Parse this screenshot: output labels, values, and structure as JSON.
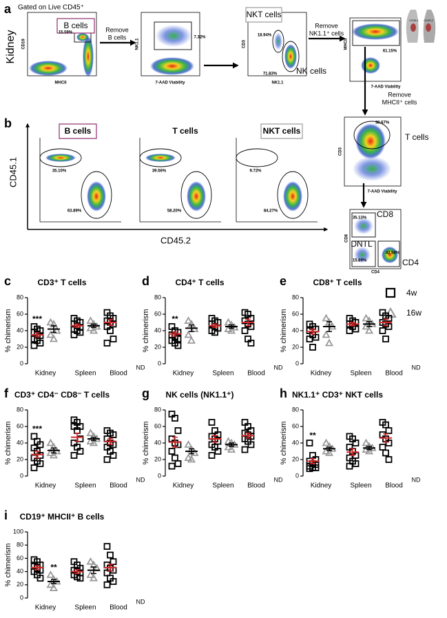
{
  "figure": {
    "a_label": "a",
    "b_label": "b",
    "tissue": "Kidney",
    "gate_note": "Gated on Live CD45⁺",
    "plot1": {
      "x": "MHCII",
      "y": "CD19",
      "gate": "B cells",
      "pct": "15.59%"
    },
    "step1": [
      "Remove",
      "B cells"
    ],
    "plot2": {
      "x": "7-AAD Viability",
      "y": "NK1.1",
      "pct": "7.32%"
    },
    "plot3": {
      "x": "NK1.1",
      "y": "CD3",
      "gate1": "NKT cells",
      "pct1": "18.94%",
      "gate2": "NK cells",
      "pct2": "71.83%"
    },
    "step2": [
      "Remove",
      "NK1.1⁺ cells"
    ],
    "plot4": {
      "x": "7-AAD Viability",
      "y": "MHCII",
      "pct": "61.15%"
    },
    "mouse": [
      "CD45.1",
      "CD45.2"
    ],
    "step3": [
      "Remove",
      "MHCII⁺ cells"
    ],
    "plot5": {
      "x": "7-AAD Viability",
      "y": "CD3",
      "gate": "T cells",
      "pct": "38.67%"
    },
    "plot6": {
      "x": "CD4",
      "y": "CD8",
      "gate1": "CD8",
      "pct1": "35.13%",
      "gate2": "DNTL",
      "pct2": "15.89%",
      "gate3": "CD4",
      "pct3": "42.58%"
    },
    "b": {
      "y": "CD45.1",
      "x": "CD45.2",
      "plots": [
        {
          "title": "B cells",
          "top": "35.10%",
          "bottom": "63.89%"
        },
        {
          "title": "T cells",
          "top": "39.56%",
          "bottom": "58.20%"
        },
        {
          "title": "NKT cells",
          "top": "9.72%",
          "bottom": "84.27%"
        }
      ]
    }
  },
  "chart_data": [
    {
      "type": "dot",
      "letter": "c",
      "title": "CD3⁺ T cells",
      "ylabel": "% chimerism",
      "categories": [
        "Kidney",
        "Spleen",
        "Blood"
      ],
      "ylim": [
        0,
        80
      ],
      "yticks": [
        0,
        20,
        40,
        60,
        80
      ],
      "series": [
        {
          "name": "4w",
          "color": "#000000",
          "mean_color": "#d62728",
          "values": [
            [
              45,
              42,
              40,
              38,
              36,
              34,
              30,
              28,
              25,
              22
            ],
            [
              55,
              52,
              50,
              48,
              46,
              44,
              42,
              40,
              38,
              35
            ],
            [
              62,
              58,
              55,
              52,
              50,
              48,
              45,
              40,
              30,
              25
            ]
          ],
          "means": [
            35,
            46,
            50
          ],
          "sems": [
            2.5,
            2,
            3.5
          ]
        },
        {
          "name": "16w",
          "color": "#999999",
          "mean_color": "#000000",
          "values": [
            [
              50,
              48,
              40,
              35,
              30
            ],
            [
              52,
              48,
              45,
              43,
              40
            ],
            null
          ],
          "means": [
            42,
            46,
            null
          ],
          "sems": [
            4,
            2,
            null
          ]
        }
      ],
      "annotations": [
        {
          "text": "***",
          "category": 0
        },
        {
          "text": "ND",
          "category": 2
        }
      ]
    },
    {
      "type": "dot",
      "letter": "d",
      "title": "CD4⁺ T cells",
      "ylabel": "% chimerism",
      "categories": [
        "Kidney",
        "Spleen",
        "Blood"
      ],
      "ylim": [
        0,
        80
      ],
      "yticks": [
        0,
        20,
        40,
        60,
        80
      ],
      "series": [
        {
          "name": "4w",
          "color": "#000000",
          "mean_color": "#d62728",
          "values": [
            [
              45,
              40,
              38,
              35,
              33,
              30,
              28,
              25,
              22
            ],
            [
              55,
              52,
              50,
              48,
              45,
              43,
              40,
              38
            ],
            [
              62,
              60,
              55,
              52,
              48,
              45,
              40,
              30,
              25
            ]
          ],
          "means": [
            36,
            46,
            50
          ],
          "sems": [
            2.5,
            2,
            4
          ]
        },
        {
          "name": "16w",
          "color": "#999999",
          "mean_color": "#000000",
          "values": [
            [
              52,
              48,
              42,
              35,
              28
            ],
            [
              50,
              47,
              44,
              42,
              40
            ],
            null
          ],
          "means": [
            43,
            45,
            null
          ],
          "sems": [
            4,
            2,
            null
          ]
        }
      ],
      "annotations": [
        {
          "text": "**",
          "category": 0
        },
        {
          "text": "ND",
          "category": 2
        }
      ]
    },
    {
      "type": "dot",
      "letter": "e",
      "title": "CD8⁺ T cells",
      "ylabel": "% chimerism",
      "categories": [
        "Kidney",
        "Spleen",
        "Blood"
      ],
      "ylim": [
        0,
        80
      ],
      "yticks": [
        0,
        20,
        40,
        60,
        80
      ],
      "series": [
        {
          "name": "4w",
          "color": "#000000",
          "mean_color": "#d62728",
          "values": [
            [
              48,
              45,
              42,
              40,
              35,
              32,
              30,
              20
            ],
            [
              55,
              52,
              50,
              48,
              45,
              42,
              40
            ],
            [
              62,
              58,
              55,
              50,
              48,
              45,
              40,
              30
            ]
          ],
          "means": [
            39,
            48,
            50
          ],
          "sems": [
            3,
            2,
            4
          ]
        },
        {
          "name": "16w",
          "color": "#999999",
          "mean_color": "#000000",
          "values": [
            [
              55,
              50,
              45,
              35,
              25
            ],
            [
              55,
              52,
              48,
              45,
              40
            ],
            null
          ],
          "means": [
            45,
            48,
            null
          ],
          "sems": [
            6,
            3,
            null
          ]
        }
      ],
      "annotations": [
        {
          "text": "ND",
          "category": 2
        }
      ]
    },
    {
      "type": "dot",
      "letter": "f",
      "title": "CD3⁺ CD4⁻ CD8⁻ T cells",
      "ylabel": "% chimerism",
      "categories": [
        "Kidney",
        "Spleen",
        "Blood"
      ],
      "ylim": [
        0,
        80
      ],
      "yticks": [
        0,
        20,
        40,
        60,
        80
      ],
      "series": [
        {
          "name": "4w",
          "color": "#000000",
          "mean_color": "#d62728",
          "values": [
            [
              48,
              42,
              38,
              34,
              30,
              25,
              22,
              18,
              15,
              10
            ],
            [
              68,
              65,
              60,
              60,
              55,
              45,
              40,
              35,
              30,
              25
            ],
            [
              55,
              52,
              50,
              45,
              40,
              38,
              35,
              30,
              25,
              20
            ]
          ],
          "means": [
            26,
            47,
            42
          ],
          "sems": [
            4,
            5,
            3.5
          ]
        },
        {
          "name": "16w",
          "color": "#999999",
          "mean_color": "#000000",
          "values": [
            [
              40,
              35,
              30,
              28,
              25
            ],
            [
              52,
              48,
              45,
              42,
              40
            ],
            null
          ],
          "means": [
            31,
            45,
            null
          ],
          "sems": [
            3,
            2,
            null
          ]
        }
      ],
      "annotations": [
        {
          "text": "***",
          "category": 0
        },
        {
          "text": "ND",
          "category": 2
        }
      ]
    },
    {
      "type": "dot",
      "letter": "g",
      "title": "NK cells (NK1.1⁺)",
      "ylabel": "% chimerism",
      "categories": [
        "Kidney",
        "Spleen",
        "Blood"
      ],
      "ylim": [
        0,
        80
      ],
      "yticks": [
        0,
        20,
        40,
        60,
        80
      ],
      "series": [
        {
          "name": "4w",
          "color": "#000000",
          "mean_color": "#d62728",
          "values": [
            [
              75,
              70,
              55,
              45,
              40,
              38,
              30,
              22,
              15,
              12
            ],
            [
              65,
              55,
              50,
              48,
              45,
              42,
              38,
              35,
              30,
              25
            ],
            [
              65,
              60,
              55,
              52,
              50,
              48,
              45,
              42,
              38,
              32
            ]
          ],
          "means": [
            41,
            45,
            49
          ],
          "sems": [
            6,
            4,
            3
          ]
        },
        {
          "name": "16w",
          "color": "#999999",
          "mean_color": "#000000",
          "values": [
            [
              38,
              32,
              28,
              22,
              20
            ],
            [
              42,
              40,
              38,
              35,
              32
            ],
            null
          ],
          "means": [
            30,
            38,
            null
          ],
          "sems": [
            3,
            2,
            null
          ]
        }
      ],
      "annotations": [
        {
          "text": "ND",
          "category": 2
        }
      ]
    },
    {
      "type": "dot",
      "letter": "h",
      "title": "NK1.1⁺ CD3⁺ NKT cells",
      "ylabel": "% chimerism",
      "categories": [
        "Kidney",
        "Spleen",
        "Blood"
      ],
      "ylim": [
        0,
        80
      ],
      "yticks": [
        0,
        20,
        40,
        60,
        80
      ],
      "series": [
        {
          "name": "4w",
          "color": "#000000",
          "mean_color": "#d62728",
          "values": [
            [
              40,
              25,
              20,
              18,
              15,
              14,
              12,
              10,
              10,
              9
            ],
            [
              48,
              45,
              40,
              35,
              30,
              25,
              22,
              18,
              15,
              12
            ],
            [
              65,
              62,
              55,
              50,
              45,
              40,
              35,
              28,
              20
            ]
          ],
          "means": [
            18,
            29,
            46
          ],
          "sems": [
            3,
            4,
            5
          ]
        },
        {
          "name": "16w",
          "color": "#999999",
          "mean_color": "#000000",
          "values": [
            [
              40,
              36,
              33,
              30,
              28
            ],
            [
              40,
              36,
              34,
              32,
              30
            ],
            null
          ],
          "means": [
            33,
            34,
            null
          ],
          "sems": [
            2,
            2,
            null
          ]
        }
      ],
      "annotations": [
        {
          "text": "**",
          "category": 0
        },
        {
          "text": "ND",
          "category": 2
        }
      ]
    },
    {
      "type": "dot",
      "letter": "i",
      "title": "CD19⁺ MHCII⁺ B cells",
      "ylabel": "% chimerism",
      "categories": [
        "Kidney",
        "Spleen",
        "Blood"
      ],
      "ylim": [
        0,
        100
      ],
      "yticks": [
        0,
        20,
        40,
        60,
        80,
        100
      ],
      "series": [
        {
          "name": "4w",
          "color": "#000000",
          "mean_color": "#d62728",
          "values": [
            [
              58,
              55,
              50,
              48,
              45,
              42,
              40,
              35,
              30
            ],
            [
              55,
              50,
              45,
              42,
              40,
              38,
              35,
              32,
              30
            ],
            [
              78,
              65,
              55,
              50,
              45,
              42,
              38,
              30,
              25,
              20
            ]
          ],
          "means": [
            46,
            40,
            46
          ],
          "sems": [
            3,
            3,
            5
          ]
        },
        {
          "name": "16w",
          "color": "#999999",
          "mean_color": "#000000",
          "values": [
            [
              35,
              28,
              25,
              20,
              15
            ],
            [
              55,
              50,
              45,
              35,
              30
            ],
            null
          ],
          "means": [
            25,
            42,
            null
          ],
          "sems": [
            3,
            5,
            null
          ]
        }
      ],
      "annotations": [
        {
          "text": "**",
          "category": 0,
          "series": 1
        },
        {
          "text": "ND",
          "category": 2
        }
      ]
    }
  ]
}
